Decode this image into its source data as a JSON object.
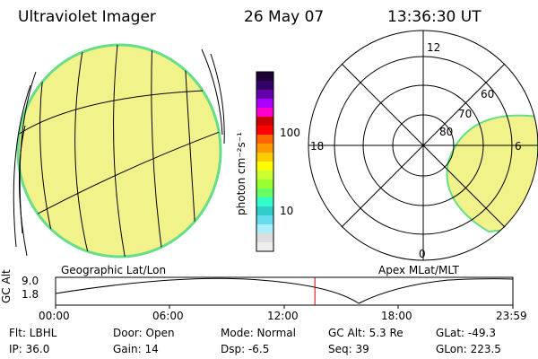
{
  "header": {
    "title": "Ultraviolet Imager",
    "date": "26 May 07",
    "time": "13:36:30 UT"
  },
  "colorbar": {
    "label": "photon cm⁻²s⁻¹",
    "tick_100": "100",
    "tick_10": "10",
    "colors": [
      "#1a0033",
      "#330066",
      "#6600aa",
      "#aa00ff",
      "#ff00cc",
      "#cc0000",
      "#ff0000",
      "#ff6600",
      "#ff9900",
      "#ffcc00",
      "#ffff00",
      "#ccff33",
      "#99ff33",
      "#66ff66",
      "#33ffcc",
      "#33cccc",
      "#66ddee",
      "#aaeeff",
      "#dddddd",
      "#eeeeee"
    ]
  },
  "polar": {
    "label_12": "12",
    "label_18": "18",
    "label_6": "6",
    "label_0": "0",
    "label_60": "60",
    "label_70": "70",
    "label_80": "80"
  },
  "map_labels": {
    "left": "Geographic Lat/Lon",
    "right": "Apex MLat/MLT"
  },
  "timeline": {
    "axis_label": "GC Alt",
    "y_top": "9.0",
    "y_bottom": "1.8",
    "ticks": [
      "00:00",
      "06:00",
      "12:00",
      "18:00",
      "23:59"
    ],
    "marker_fraction": 0.567
  },
  "info": {
    "flt": "Flt: LBHL",
    "ip": "IP: 36.0",
    "door": "Door: Open",
    "gain": "Gain: 14",
    "mode": "Mode: Normal",
    "dsp": "Dsp:    -6.5",
    "gcalt": "GC Alt: 5.3 Re",
    "seq": "Seq: 39",
    "glat": "GLat: -49.3",
    "glon": "GLon: 223.5"
  }
}
